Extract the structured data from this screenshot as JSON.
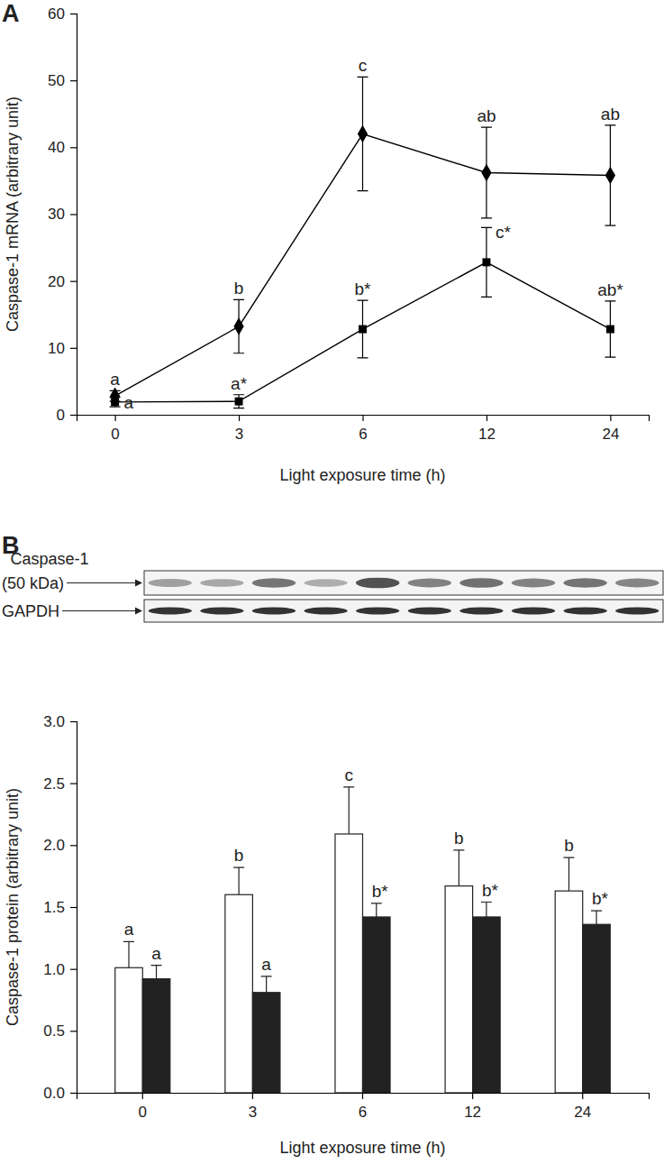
{
  "chart_data": [
    {
      "type": "line",
      "title": "A",
      "x_label": "Light exposure time (h)",
      "y_label": "Caspase-1 mRNA (arbitrary unit)",
      "categories": [
        "0",
        "3",
        "6",
        "12",
        "24"
      ],
      "ylim": [
        0,
        60
      ],
      "yticks": [
        0,
        10,
        20,
        30,
        40,
        50,
        60
      ],
      "grid": false,
      "series": [
        {
          "color": "#000000",
          "marker": "diamond",
          "line_style": "solid",
          "values": [
            2.8,
            13.2,
            42,
            36.2,
            35.8
          ],
          "errors": [
            0.8,
            4,
            8.5,
            6.8,
            7.5
          ],
          "annotations": [
            "a",
            "b",
            "c",
            "ab",
            "ab"
          ]
        },
        {
          "color": "#000000",
          "marker": "square",
          "line_style": "solid",
          "values": [
            1.9,
            2.0,
            12.8,
            22.8,
            12.8
          ],
          "errors": [
            0.7,
            1.0,
            4.3,
            5.2,
            4.2
          ],
          "annotations": [
            "a",
            "a*",
            "b*",
            "c*",
            "ab*"
          ]
        }
      ]
    },
    {
      "type": "bar",
      "title": "B",
      "x_label": "Light exposure time (h)",
      "y_label": "Caspase-1 protein (arbitrary unit)",
      "categories": [
        "0",
        "3",
        "6",
        "12",
        "24"
      ],
      "ylim": [
        0,
        3.0
      ],
      "yticks": [
        {
          "value": 0,
          "label": "0.0"
        },
        {
          "value": 0.5,
          "label": "0.5"
        },
        {
          "value": 1,
          "label": "1.0"
        },
        {
          "value": 1.5,
          "label": "1.5"
        },
        {
          "value": 2,
          "label": "2.0"
        },
        {
          "value": 2.5,
          "label": "2.5"
        },
        {
          "value": 3,
          "label": "3.0"
        }
      ],
      "grid": false,
      "blot": {
        "rows": [
          {
            "label": [
              "Caspase-1",
              "(50 kDa)"
            ]
          },
          {
            "label": [
              "GAPDH"
            ]
          }
        ]
      },
      "series": [
        {
          "color": "#ffffff",
          "values": [
            1.01,
            1.6,
            2.09,
            1.67,
            1.63
          ],
          "errors": [
            0.21,
            0.22,
            0.38,
            0.29,
            0.27
          ],
          "annotations": [
            "a",
            "b",
            "c",
            "b",
            "b"
          ]
        },
        {
          "color": "#222222",
          "values": [
            0.92,
            0.81,
            1.42,
            1.42,
            1.36
          ],
          "errors": [
            0.11,
            0.13,
            0.11,
            0.12,
            0.11
          ],
          "annotations": [
            "a",
            "a",
            "b*",
            "b*",
            "b*"
          ]
        }
      ]
    }
  ]
}
